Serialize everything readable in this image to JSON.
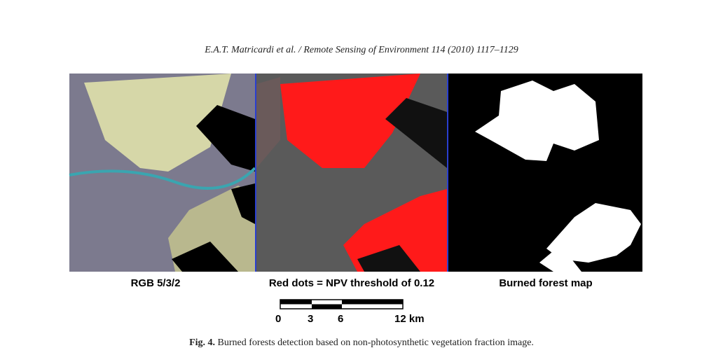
{
  "header": {
    "text": "E.A.T. Matricardi et al. / Remote Sensing of Environment 114 (2010) 1117–1129"
  },
  "figure": {
    "panels": [
      {
        "label": "RGB 5/3/2"
      },
      {
        "label": "Red dots = NPV threshold of 0.12"
      },
      {
        "label": "Burned forest map"
      }
    ],
    "scale_bar": {
      "labels": [
        "0",
        "3",
        "6",
        "12 km"
      ]
    },
    "caption": {
      "number": "Fig. 4.",
      "text": "Burned forests detection based on non-photosynthetic vegetation fraction image."
    }
  }
}
